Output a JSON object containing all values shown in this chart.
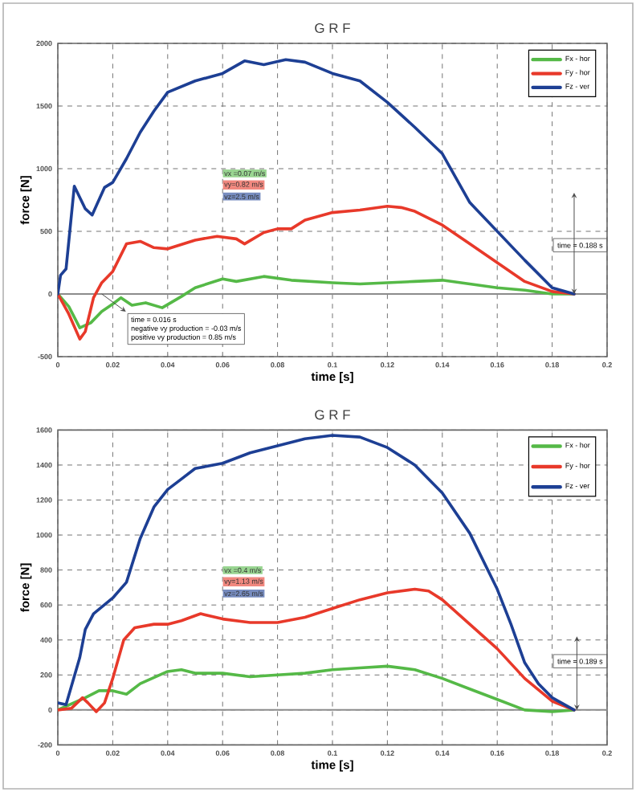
{
  "chart_data": [
    {
      "type": "line",
      "title": "G R F",
      "xlabel": "time [s]",
      "ylabel": "force [N]",
      "xlim": [
        0,
        0.2
      ],
      "ylim": [
        -500,
        2000
      ],
      "xticks": [
        0,
        0.02,
        0.04,
        0.06,
        0.08,
        0.1,
        0.12,
        0.14,
        0.16,
        0.18,
        0.2
      ],
      "yticks": [
        -500,
        0,
        500,
        1000,
        1500,
        2000
      ],
      "grid": true,
      "legend": "top right",
      "ref_lines": [
        {
          "axis": "y",
          "value": 0,
          "color": "#8c8c8c"
        }
      ],
      "series": [
        {
          "name": "Fx - hor",
          "color": "#55b947",
          "x": [
            0,
            0.004,
            0.008,
            0.012,
            0.016,
            0.02,
            0.023,
            0.027,
            0.032,
            0.038,
            0.045,
            0.05,
            0.06,
            0.065,
            0.075,
            0.085,
            0.1,
            0.11,
            0.13,
            0.14,
            0.15,
            0.16,
            0.17,
            0.18,
            0.188
          ],
          "values": [
            0,
            -100,
            -270,
            -230,
            -140,
            -80,
            -30,
            -90,
            -70,
            -110,
            -20,
            50,
            120,
            100,
            140,
            110,
            90,
            80,
            100,
            110,
            80,
            50,
            30,
            0,
            0
          ]
        },
        {
          "name": "Fy - hor",
          "color": "#e8392a",
          "x": [
            0,
            0.004,
            0.008,
            0.01,
            0.013,
            0.016,
            0.02,
            0.025,
            0.03,
            0.035,
            0.04,
            0.05,
            0.058,
            0.065,
            0.068,
            0.075,
            0.08,
            0.085,
            0.09,
            0.1,
            0.11,
            0.12,
            0.125,
            0.13,
            0.14,
            0.15,
            0.16,
            0.17,
            0.18,
            0.188
          ],
          "values": [
            0,
            -160,
            -360,
            -300,
            -30,
            90,
            180,
            400,
            420,
            370,
            360,
            430,
            460,
            440,
            400,
            490,
            520,
            520,
            590,
            650,
            670,
            700,
            690,
            660,
            550,
            400,
            250,
            100,
            20,
            0
          ]
        },
        {
          "name": "Fz - ver",
          "color": "#1d3f94",
          "x": [
            0,
            0.001,
            0.003,
            0.006,
            0.01,
            0.0125,
            0.017,
            0.02,
            0.025,
            0.03,
            0.035,
            0.04,
            0.05,
            0.06,
            0.068,
            0.075,
            0.083,
            0.09,
            0.1,
            0.11,
            0.12,
            0.13,
            0.14,
            0.15,
            0.16,
            0.17,
            0.18,
            0.188
          ],
          "values": [
            0,
            150,
            200,
            860,
            680,
            630,
            850,
            890,
            1080,
            1290,
            1460,
            1610,
            1700,
            1760,
            1860,
            1830,
            1870,
            1850,
            1760,
            1700,
            1530,
            1330,
            1120,
            730,
            500,
            270,
            50,
            0
          ]
        }
      ],
      "annotations": [
        "vx =0.07 m/s",
        "vy=0.82 m/s",
        "vz=2.5 m/s",
        "time = 0.016 s",
        "negative vy production = -0.03 m/s",
        "positive vy production = 0.85 m/s",
        "time = 0.188 s"
      ]
    },
    {
      "type": "line",
      "title": "G R F",
      "xlabel": "time [s]",
      "ylabel": "force [N]",
      "xlim": [
        0,
        0.2
      ],
      "ylim": [
        -200,
        1600
      ],
      "xticks": [
        0,
        0.02,
        0.04,
        0.06,
        0.08,
        0.1,
        0.12,
        0.14,
        0.16,
        0.18,
        0.2
      ],
      "yticks": [
        -200,
        0,
        200,
        400,
        600,
        800,
        1000,
        1200,
        1400,
        1600
      ],
      "grid": true,
      "legend": "top right",
      "ref_lines": [
        {
          "axis": "y",
          "value": 0,
          "color": "#8c8c8c"
        }
      ],
      "series": [
        {
          "name": "Fx - hor",
          "color": "#55b947",
          "x": [
            0,
            0.01,
            0.015,
            0.02,
            0.025,
            0.03,
            0.04,
            0.045,
            0.05,
            0.06,
            0.07,
            0.08,
            0.09,
            0.1,
            0.11,
            0.12,
            0.13,
            0.14,
            0.15,
            0.16,
            0.17,
            0.18,
            0.188
          ],
          "values": [
            0,
            70,
            110,
            110,
            90,
            150,
            220,
            230,
            210,
            210,
            190,
            200,
            210,
            230,
            240,
            250,
            230,
            180,
            120,
            60,
            0,
            -10,
            0
          ]
        },
        {
          "name": "Fy - hor",
          "color": "#e8392a",
          "x": [
            0,
            0.005,
            0.009,
            0.011,
            0.014,
            0.017,
            0.02,
            0.024,
            0.028,
            0.035,
            0.04,
            0.045,
            0.052,
            0.06,
            0.07,
            0.08,
            0.09,
            0.1,
            0.11,
            0.12,
            0.13,
            0.135,
            0.14,
            0.15,
            0.16,
            0.17,
            0.18,
            0.188
          ],
          "values": [
            0,
            10,
            70,
            40,
            -10,
            40,
            180,
            400,
            470,
            490,
            490,
            510,
            550,
            520,
            500,
            500,
            530,
            580,
            630,
            670,
            690,
            680,
            630,
            490,
            350,
            180,
            50,
            0
          ]
        },
        {
          "name": "Fz - ver",
          "color": "#1d3f94",
          "x": [
            0,
            0.003,
            0.008,
            0.01,
            0.013,
            0.02,
            0.025,
            0.03,
            0.035,
            0.04,
            0.045,
            0.05,
            0.06,
            0.07,
            0.08,
            0.09,
            0.1,
            0.11,
            0.12,
            0.13,
            0.14,
            0.15,
            0.16,
            0.165,
            0.17,
            0.175,
            0.18,
            0.188
          ],
          "values": [
            40,
            30,
            300,
            460,
            550,
            640,
            730,
            980,
            1160,
            1260,
            1320,
            1380,
            1410,
            1470,
            1510,
            1550,
            1570,
            1560,
            1500,
            1400,
            1240,
            1010,
            690,
            490,
            270,
            150,
            70,
            0
          ]
        }
      ],
      "annotations": [
        "vx =0.4 m/s",
        "vy=1.13 m/s",
        "vz=2.65 m/s",
        "time = 0.189 s"
      ]
    }
  ]
}
